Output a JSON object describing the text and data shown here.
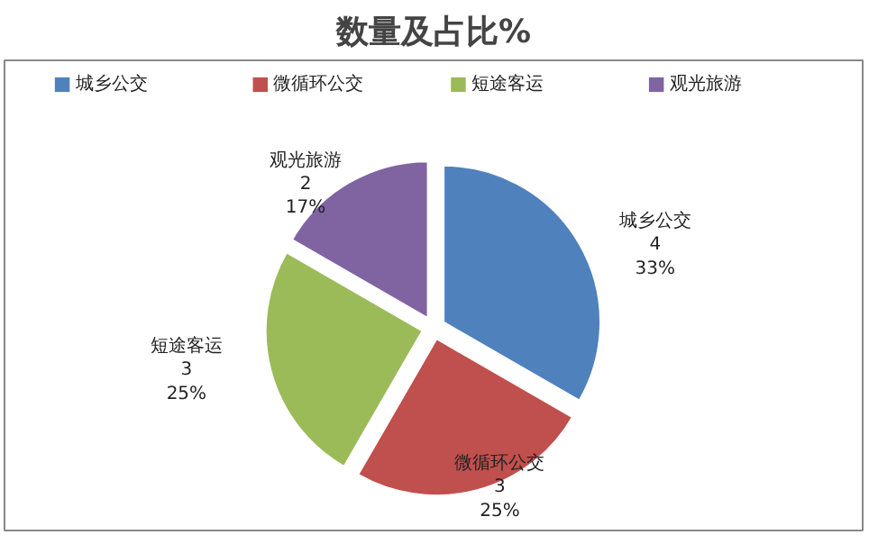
{
  "chart_data": {
    "type": "pie",
    "title": "数量及占比%",
    "categories": [
      "城乡公交",
      "微循环公交",
      "短途客运",
      "观光旅游"
    ],
    "values": [
      4,
      3,
      3,
      2
    ],
    "value_labels": [
      "4\n33%",
      "3\n25%",
      "3\n25%",
      "2\n17%"
    ],
    "colors": [
      "#4f81bd",
      "#c0504d",
      "#9bbb59",
      "#8064a2"
    ],
    "legend": "top"
  }
}
